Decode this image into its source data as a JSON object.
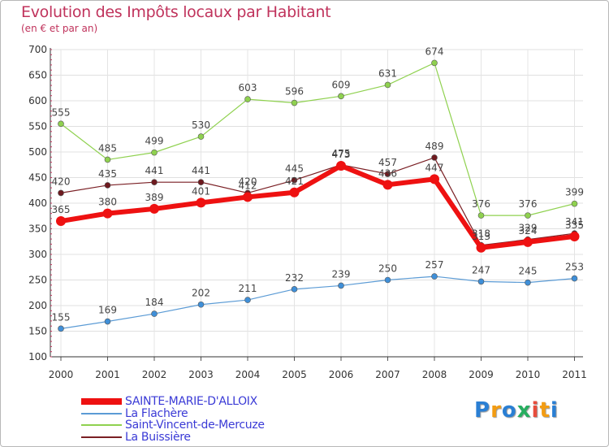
{
  "title": "Evolution des Impôts locaux par Habitant",
  "subtitle": "(en € et par an)",
  "logo": {
    "letters": [
      "P",
      "r",
      "o",
      "x",
      "i",
      "t",
      "i"
    ],
    "colors": [
      "#2a7fd4",
      "#f39c12",
      "#2a7fd4",
      "#27ae60",
      "#e74c3c",
      "#f39c12",
      "#2a7fd4"
    ]
  },
  "chart_data": {
    "type": "line",
    "title": "Evolution des Impôts locaux par Habitant",
    "ylabel": "(en € et par an)",
    "xlabel": "",
    "x": [
      "2000",
      "2001",
      "2002",
      "2003",
      "2004",
      "2005",
      "2006",
      "2007",
      "2008",
      "2009",
      "2010",
      "2011"
    ],
    "ylim": [
      100,
      700
    ],
    "yticks": [
      "100",
      "150",
      "200",
      "250",
      "300",
      "350",
      "400",
      "450",
      "500",
      "550",
      "600",
      "650",
      "700"
    ],
    "grid": true,
    "legend": "bottom-left",
    "series": [
      {
        "name": "Saint-Vincent-de-Mercuze",
        "color": "#8fd14f",
        "dot": "#8fd14f",
        "width": 1.2,
        "values": [
          555,
          485,
          499,
          530,
          603,
          596,
          609,
          631,
          674,
          376,
          376,
          399
        ],
        "labels": [
          "555",
          "485",
          "499",
          "530",
          "603",
          "596",
          "609",
          "631",
          "674",
          "376",
          "376",
          "399"
        ]
      },
      {
        "name": "La Buissière",
        "color": "#7a1f24",
        "dot": "#6e1a1f",
        "width": 1.2,
        "values": [
          420,
          435,
          441,
          441,
          420,
          445,
          475,
          457,
          489,
          318,
          329,
          341
        ],
        "labels": [
          "420",
          "435",
          "441",
          "441",
          "420",
          "445",
          "475",
          "457",
          "489",
          "318",
          "329",
          "341"
        ]
      },
      {
        "name": "La Flachère",
        "color": "#5b9bd5",
        "dot": "#3f8fd8",
        "width": 1.2,
        "values": [
          155,
          169,
          184,
          202,
          211,
          232,
          239,
          250,
          257,
          247,
          245,
          253
        ],
        "labels": [
          "155",
          "169",
          "184",
          "202",
          "211",
          "232",
          "239",
          "250",
          "257",
          "247",
          "245",
          "253"
        ]
      },
      {
        "name": "SAINTE-MARIE-D'ALLOIX",
        "color": "#ee1111",
        "dot": "#ee1111",
        "width": 6,
        "values": [
          365,
          380,
          389,
          401,
          412,
          421,
          473,
          436,
          447,
          313,
          324,
          335
        ],
        "labels": [
          "365",
          "380",
          "389",
          "401",
          "412",
          "421",
          "473",
          "436",
          "447",
          "313",
          "324",
          "335"
        ]
      }
    ],
    "legend_order": [
      "SAINTE-MARIE-D'ALLOIX",
      "La Flachère",
      "Saint-Vincent-de-Mercuze",
      "La Buissière"
    ]
  }
}
